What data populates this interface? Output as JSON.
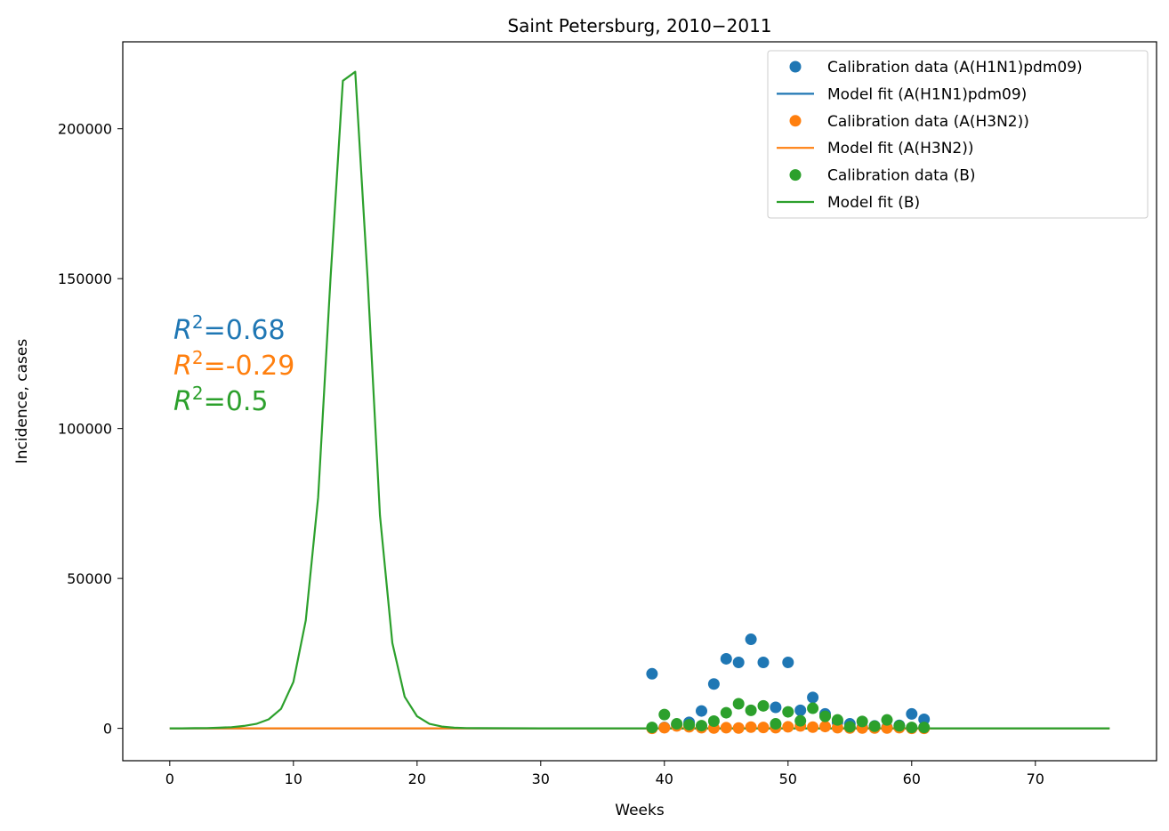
{
  "chart_data": {
    "type": "line",
    "title": "Saint Petersburg, 2010−2011",
    "xlabel": "Weeks",
    "ylabel": "Incidence, cases",
    "xlim": [
      -3.8,
      79.8
    ],
    "ylim": [
      -10800,
      229000
    ],
    "xticks": [
      0,
      10,
      20,
      30,
      40,
      50,
      60,
      70
    ],
    "yticks": [
      0,
      50000,
      100000,
      150000,
      200000
    ],
    "grid": false,
    "legend_position": "top-right",
    "series": [
      {
        "name": "Calibration data (A(H1N1)pdm09)",
        "kind": "scatter",
        "color": "#1f77b4",
        "x": [
          39,
          40,
          41,
          42,
          43,
          44,
          45,
          46,
          47,
          48,
          49,
          50,
          51,
          52,
          53,
          54,
          55,
          56,
          57,
          58,
          59,
          60,
          61
        ],
        "y": [
          18200,
          300,
          1200,
          2000,
          5800,
          14800,
          23200,
          22000,
          29700,
          22000,
          7000,
          22000,
          6000,
          10300,
          4800,
          2000,
          1500,
          300,
          800,
          300,
          1000,
          4800,
          3000
        ]
      },
      {
        "name": "Model fit (A(H1N1)pdm09)",
        "kind": "line",
        "color": "#1f77b4",
        "x": [
          0,
          76
        ],
        "y": [
          0,
          0
        ]
      },
      {
        "name": "Calibration data (A(H3N2))",
        "kind": "scatter",
        "color": "#ff7f0e",
        "x": [
          39,
          40,
          41,
          42,
          43,
          44,
          45,
          46,
          47,
          48,
          49,
          50,
          51,
          52,
          53,
          54,
          55,
          56,
          57,
          58,
          59,
          60,
          61
        ],
        "y": [
          0,
          200,
          800,
          500,
          200,
          100,
          200,
          100,
          400,
          300,
          200,
          500,
          800,
          400,
          600,
          200,
          100,
          100,
          100,
          100,
          200,
          0,
          0
        ]
      },
      {
        "name": "Model fit (A(H3N2))",
        "kind": "line",
        "color": "#ff7f0e",
        "x": [
          0,
          76
        ],
        "y": [
          0,
          0
        ]
      },
      {
        "name": "Calibration data (B)",
        "kind": "scatter",
        "color": "#2ca02c",
        "x": [
          39,
          40,
          41,
          42,
          43,
          44,
          45,
          46,
          47,
          48,
          49,
          50,
          51,
          52,
          53,
          54,
          55,
          56,
          57,
          58,
          59,
          60,
          61
        ],
        "y": [
          300,
          4600,
          1500,
          1200,
          900,
          2400,
          5200,
          8200,
          6000,
          7500,
          1500,
          5500,
          2500,
          6700,
          4000,
          2800,
          500,
          2300,
          700,
          2800,
          800,
          300,
          300
        ]
      },
      {
        "name": "Model fit (B)",
        "kind": "line",
        "color": "#2ca02c",
        "x": [
          0,
          1,
          2,
          3,
          4,
          5,
          6,
          7,
          8,
          9,
          10,
          11,
          12,
          13,
          14,
          15,
          16,
          17,
          18,
          19,
          20,
          21,
          22,
          23,
          24,
          25,
          30,
          40,
          50,
          60,
          70,
          76
        ],
        "y": [
          0,
          0,
          50,
          100,
          200,
          400,
          800,
          1500,
          3000,
          6500,
          15500,
          36000,
          77000,
          150000,
          216000,
          219000,
          150000,
          71000,
          28500,
          10500,
          4000,
          1500,
          600,
          200,
          100,
          50,
          0,
          0,
          0,
          0,
          0,
          0
        ]
      }
    ],
    "annotations": [
      {
        "symbol": "R",
        "sup": "2",
        "value": "=0.68",
        "color": "#1f77b4"
      },
      {
        "symbol": "R",
        "sup": "2",
        "value": "=-0.29",
        "color": "#ff7f0e"
      },
      {
        "symbol": "R",
        "sup": "2",
        "value": "=0.5",
        "color": "#2ca02c"
      }
    ]
  }
}
